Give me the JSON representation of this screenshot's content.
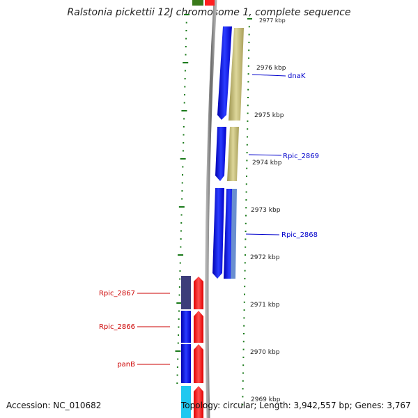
{
  "title": "Ralstonia pickettii 12J chromosome 1, complete sequence",
  "footer": {
    "accession": "Accession: NC_010682",
    "topology": "Topology: circular; Length: 3,942,557 bp; Genes: 3,767"
  },
  "scale": {
    "top_label": "2977 kbp",
    "bottom_label": "2969 kbp",
    "ticks": [
      "2976 kbp",
      "2975 kbp",
      "2974 kbp",
      "2973 kbp",
      "2972 kbp",
      "2971 kbp",
      "2970 kbp"
    ]
  },
  "genes_forward": [
    {
      "name": "dnaK",
      "color": "#0000cc"
    },
    {
      "name": "Rpic_2869",
      "color": "#0000cc"
    },
    {
      "name": "Rpic_2868",
      "color": "#0000cc"
    }
  ],
  "genes_reverse": [
    {
      "name": "Rpic_2867",
      "color": "#cc0000"
    },
    {
      "name": "Rpic_2866",
      "color": "#cc0000"
    },
    {
      "name": "panB",
      "color": "#cc0000"
    }
  ],
  "colors": {
    "blue_cds": "#0a14e6",
    "red_cds": "#ff1010",
    "tan_feature": "#c8c07a",
    "backbone": "#888888",
    "tick_green": "#1a7a1a"
  }
}
